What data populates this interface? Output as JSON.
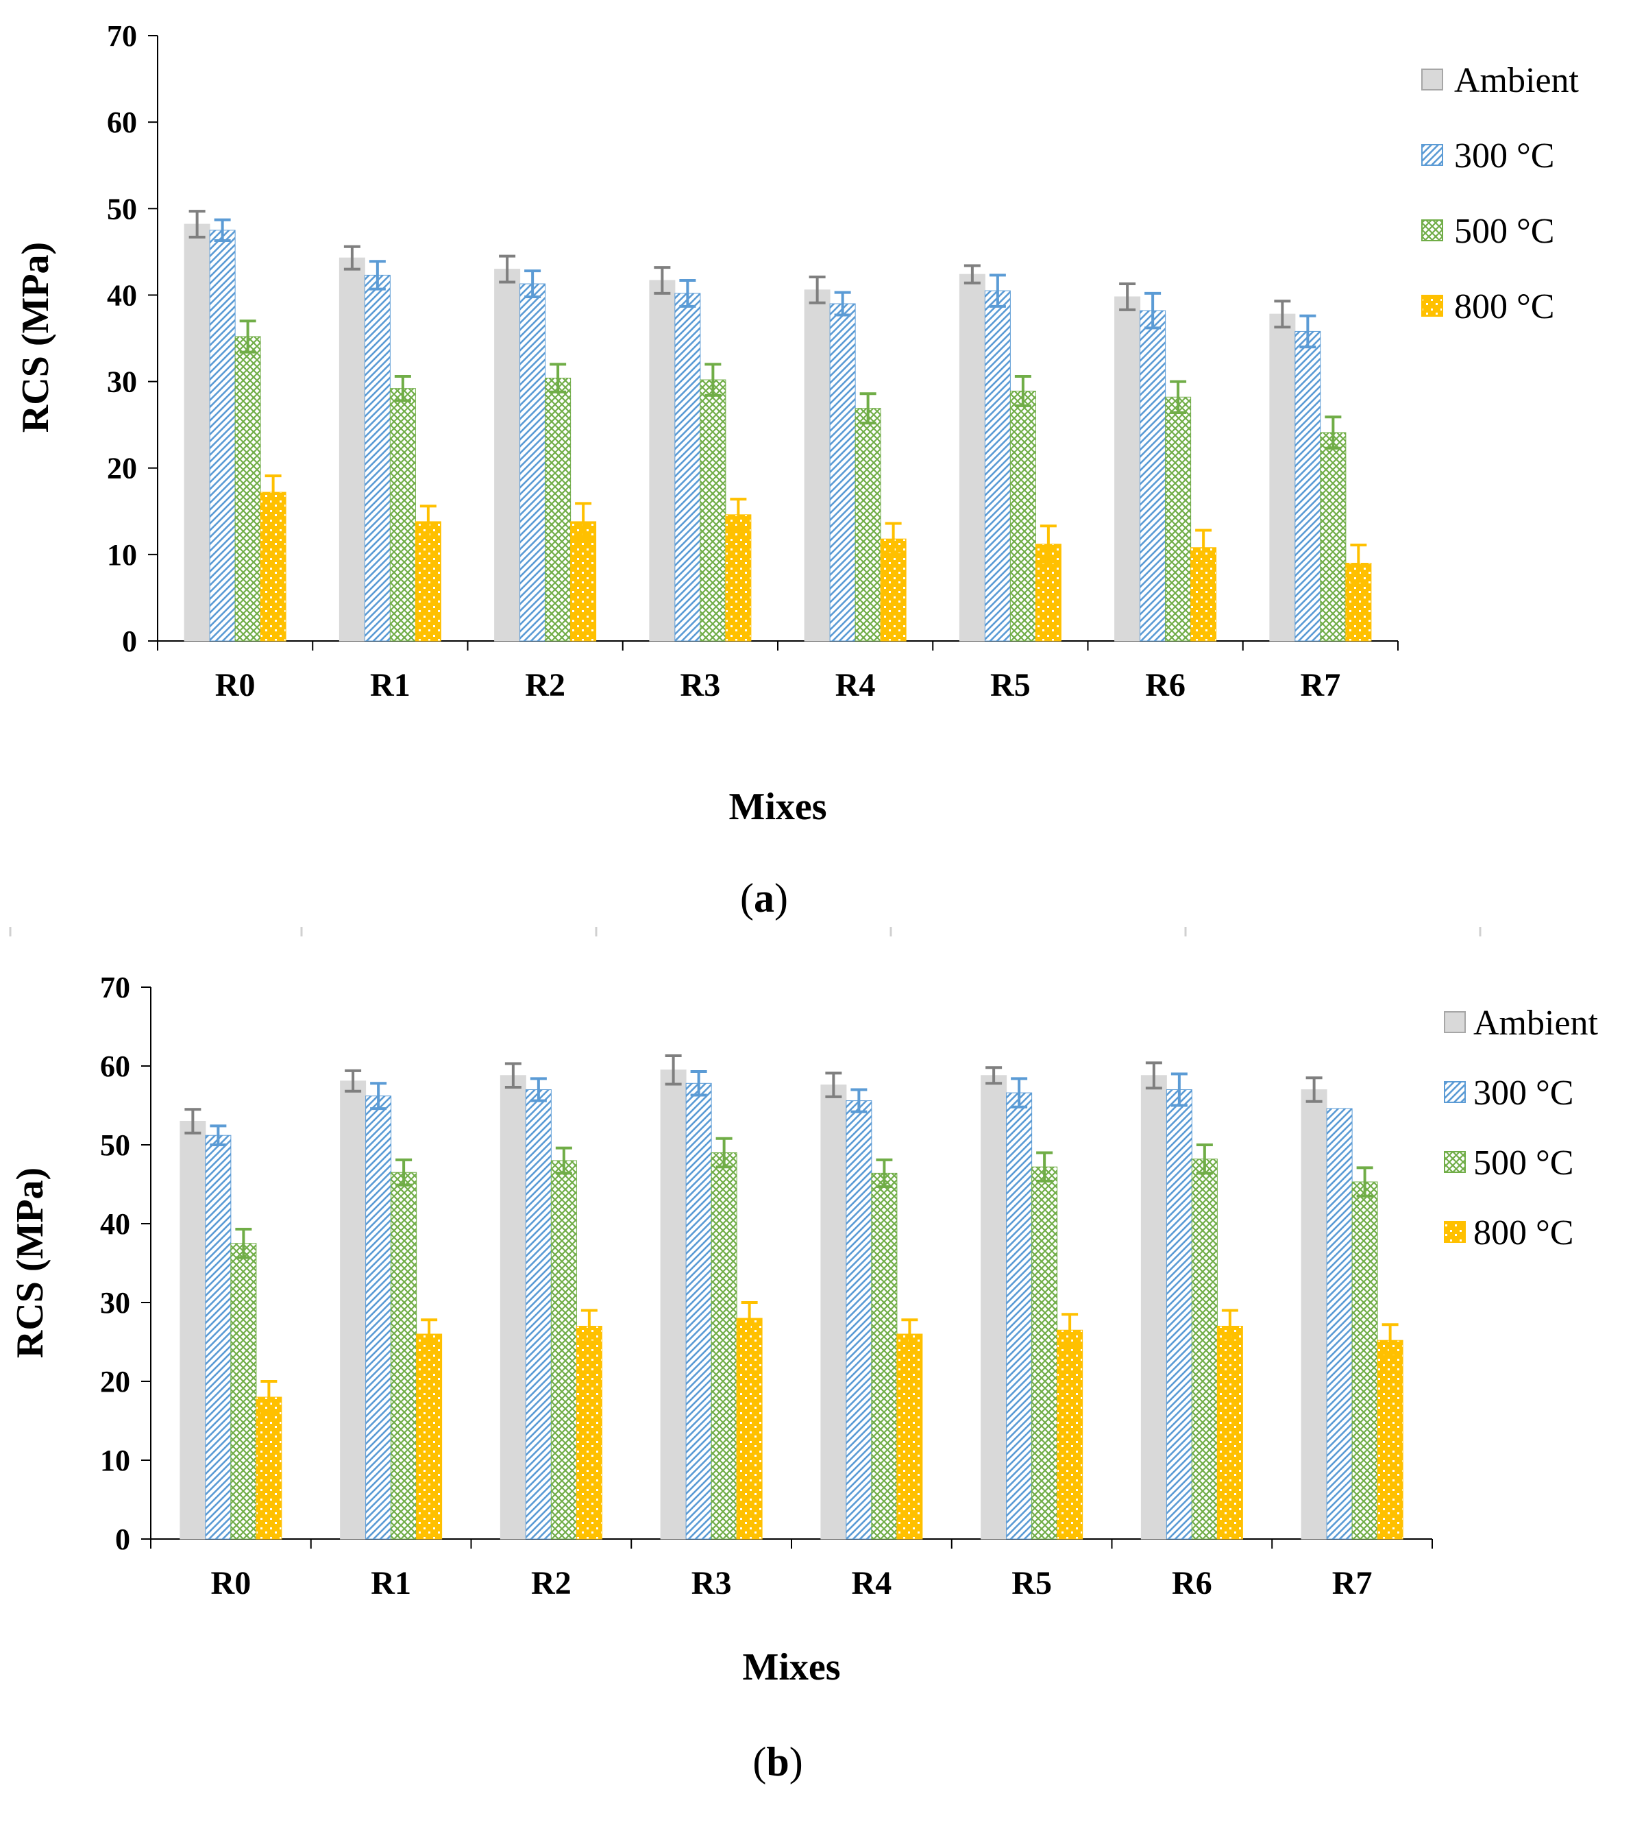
{
  "colors": {
    "ambient_fill": "#d9d9d9",
    "ambient_err": "#7f7f7f",
    "c300": "#5b9bd5",
    "c500": "#70ad47",
    "c800": "#ffc000",
    "axis": "#000000",
    "separator": "#d0d0d0"
  },
  "chart_data": [
    {
      "type": "bar",
      "panel_label": "a",
      "xlabel": "Mixes",
      "ylabel": "RCS (MPa)",
      "ylim": [
        0,
        70
      ],
      "yticks": [
        0,
        10,
        20,
        30,
        40,
        50,
        60,
        70
      ],
      "legend_position": "top-right",
      "grid": false,
      "categories": [
        "R0",
        "R1",
        "R2",
        "R3",
        "R4",
        "R5",
        "R6",
        "R7"
      ],
      "series": [
        {
          "name": "Ambient",
          "pattern": "solid",
          "values": [
            48.2,
            44.3,
            43.0,
            41.7,
            40.6,
            42.4,
            39.8,
            37.8
          ],
          "errors": [
            1.5,
            1.3,
            1.5,
            1.5,
            1.5,
            1.0,
            1.5,
            1.5
          ]
        },
        {
          "name": "300 °C",
          "pattern": "diagonal",
          "values": [
            47.5,
            42.3,
            41.3,
            40.2,
            39.0,
            40.5,
            38.2,
            35.8
          ],
          "errors": [
            1.2,
            1.6,
            1.5,
            1.5,
            1.3,
            1.8,
            2.0,
            1.8
          ]
        },
        {
          "name": "500 °C",
          "pattern": "checker",
          "values": [
            35.2,
            29.2,
            30.4,
            30.2,
            26.9,
            28.9,
            28.2,
            24.1
          ],
          "errors": [
            1.8,
            1.4,
            1.6,
            1.8,
            1.7,
            1.7,
            1.8,
            1.8
          ]
        },
        {
          "name": "800 °C",
          "pattern": "dots",
          "values": [
            17.2,
            13.8,
            13.8,
            14.6,
            11.8,
            11.2,
            10.8,
            9.0
          ],
          "errors": [
            1.9,
            1.8,
            2.1,
            1.8,
            1.8,
            2.1,
            2.0,
            2.1
          ]
        }
      ]
    },
    {
      "type": "bar",
      "panel_label": "b",
      "xlabel": "Mixes",
      "ylabel": "RCS (MPa)",
      "ylim": [
        0,
        70
      ],
      "yticks": [
        0,
        10,
        20,
        30,
        40,
        50,
        60,
        70
      ],
      "legend_position": "top-right",
      "grid": false,
      "categories": [
        "R0",
        "R1",
        "R2",
        "R3",
        "R4",
        "R5",
        "R6",
        "R7"
      ],
      "series": [
        {
          "name": "Ambient",
          "pattern": "solid",
          "values": [
            53.0,
            58.1,
            58.8,
            59.5,
            57.6,
            58.8,
            58.8,
            57.0
          ],
          "errors": [
            1.5,
            1.3,
            1.5,
            1.8,
            1.5,
            1.0,
            1.6,
            1.5
          ]
        },
        {
          "name": "300 °C",
          "pattern": "diagonal",
          "values": [
            51.2,
            56.2,
            57.0,
            57.8,
            55.6,
            56.6,
            57.0,
            54.6
          ],
          "errors": [
            1.2,
            1.6,
            1.4,
            1.5,
            1.4,
            1.8,
            2.0,
            0.0
          ]
        },
        {
          "name": "500 °C",
          "pattern": "checker",
          "values": [
            37.5,
            46.5,
            48.0,
            49.0,
            46.4,
            47.2,
            48.2,
            45.3
          ],
          "errors": [
            1.8,
            1.6,
            1.6,
            1.8,
            1.7,
            1.8,
            1.8,
            1.8
          ]
        },
        {
          "name": "800 °C",
          "pattern": "dots",
          "values": [
            18.0,
            26.0,
            27.0,
            28.0,
            26.0,
            26.5,
            27.0,
            25.2
          ],
          "errors": [
            2.0,
            1.8,
            2.0,
            2.0,
            1.8,
            2.0,
            2.0,
            2.0
          ]
        }
      ]
    }
  ]
}
